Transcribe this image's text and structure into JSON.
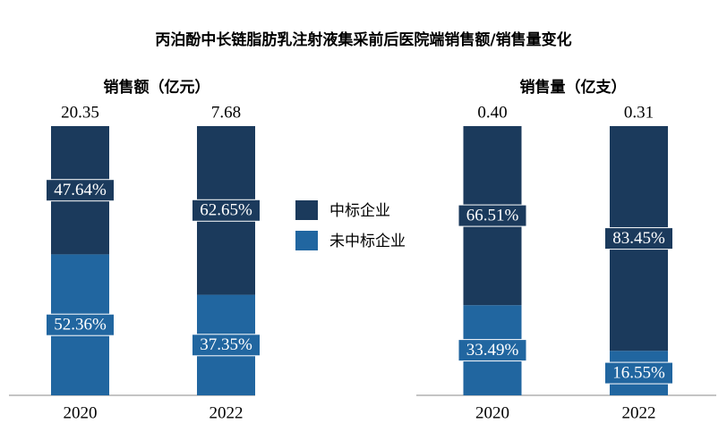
{
  "title": "丙泊酚中长链脂肪乳注射液集采前后医院端销售额/销售量变化",
  "chart_data": [
    {
      "type": "stacked-percent-bar",
      "title": "销售额（亿元）",
      "categories": [
        "2020",
        "2022"
      ],
      "totals": [
        20.35,
        7.68
      ],
      "series": [
        {
          "name": "中标企业",
          "color": "#1b3a5c",
          "values": [
            47.64,
            62.65
          ],
          "value_labels": [
            "47.64%",
            "62.65%"
          ]
        },
        {
          "name": "未中标企业",
          "color": "#2166a0",
          "values": [
            52.36,
            37.35
          ],
          "value_labels": [
            "52.36%",
            "37.35%"
          ]
        }
      ],
      "ylim": [
        0,
        100
      ],
      "grid": false
    },
    {
      "type": "stacked-percent-bar",
      "title": "销售量（亿支）",
      "categories": [
        "2020",
        "2022"
      ],
      "totals": [
        0.4,
        0.31
      ],
      "total_labels": [
        "0.40",
        "0.31"
      ],
      "series": [
        {
          "name": "中标企业",
          "color": "#1b3a5c",
          "values": [
            66.51,
            83.45
          ],
          "value_labels": [
            "66.51%",
            "83.45%"
          ]
        },
        {
          "name": "未中标企业",
          "color": "#2166a0",
          "values": [
            33.49,
            16.55
          ],
          "value_labels": [
            "33.49%",
            "16.55%"
          ]
        }
      ],
      "ylim": [
        0,
        100
      ],
      "grid": false
    }
  ]
}
